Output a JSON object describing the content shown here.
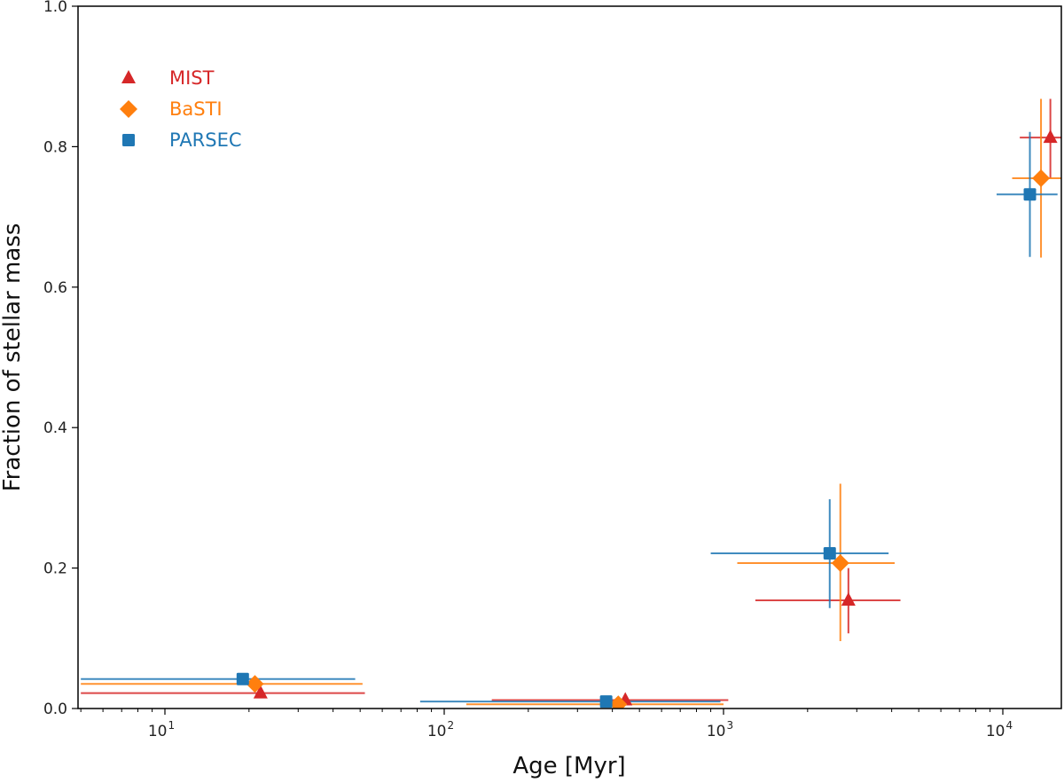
{
  "chart_data": {
    "type": "scatter",
    "title": "",
    "xlabel": "Age [Myr]",
    "ylabel": "Fraction of stellar mass",
    "xscale": "log",
    "xlim": [
      5,
      16500
    ],
    "ylim": [
      0.0,
      1.0
    ],
    "grid": false,
    "legend_position": "upper left",
    "x_ticks": [
      {
        "value": 10,
        "label": "10",
        "exp": "1"
      },
      {
        "value": 100,
        "label": "10",
        "exp": "2"
      },
      {
        "value": 1000,
        "label": "10",
        "exp": "3"
      },
      {
        "value": 10000,
        "label": "10",
        "exp": "4"
      }
    ],
    "y_ticks": [
      "0.0",
      "0.2",
      "0.4",
      "0.6",
      "0.8",
      "1.0"
    ],
    "series": [
      {
        "name": "MIST",
        "color": "#d62728",
        "marker": "triangle",
        "points": [
          {
            "x": 22,
            "y": 0.022,
            "xerr": [
              5,
              52
            ],
            "yerr": [
              0.022,
              0.022
            ]
          },
          {
            "x": 445,
            "y": 0.012,
            "xerr": [
              148,
              1040
            ],
            "yerr": [
              0.012,
              0.012
            ]
          },
          {
            "x": 2800,
            "y": 0.154,
            "xerr": [
              1300,
              4300
            ],
            "yerr": [
              0.107,
              0.2
            ]
          },
          {
            "x": 14800,
            "y": 0.813,
            "xerr": [
              11500,
              16500
            ],
            "yerr": [
              0.755,
              0.868
            ]
          }
        ]
      },
      {
        "name": "BaSTI",
        "color": "#ff7f0e",
        "marker": "diamond",
        "points": [
          {
            "x": 21,
            "y": 0.035,
            "xerr": [
              5,
              51
            ],
            "yerr": [
              0.035,
              0.035
            ]
          },
          {
            "x": 420,
            "y": 0.006,
            "xerr": [
              120,
              1000
            ],
            "yerr": [
              0.006,
              0.006
            ]
          },
          {
            "x": 2620,
            "y": 0.207,
            "xerr": [
              1120,
              4100
            ],
            "yerr": [
              0.096,
              0.32
            ]
          },
          {
            "x": 13700,
            "y": 0.755,
            "xerr": [
              10800,
              16500
            ],
            "yerr": [
              0.642,
              0.868
            ]
          }
        ]
      },
      {
        "name": "PARSEC",
        "color": "#1f77b4",
        "marker": "square",
        "points": [
          {
            "x": 19,
            "y": 0.042,
            "xerr": [
              5,
              48
            ],
            "yerr": [
              0.035,
              0.05
            ]
          },
          {
            "x": 380,
            "y": 0.01,
            "xerr": [
              82,
              975
            ],
            "yerr": [
              0.01,
              0.01
            ]
          },
          {
            "x": 2400,
            "y": 0.221,
            "xerr": [
              900,
              3900
            ],
            "yerr": [
              0.143,
              0.298
            ]
          },
          {
            "x": 12500,
            "y": 0.732,
            "xerr": [
              9500,
              15700
            ],
            "yerr": [
              0.643,
              0.821
            ]
          }
        ]
      }
    ]
  }
}
